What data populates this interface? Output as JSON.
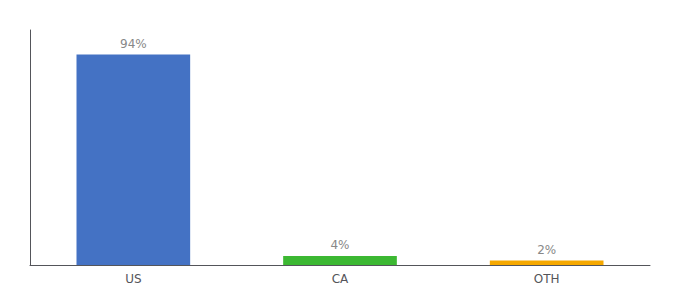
{
  "chart_data": {
    "type": "bar",
    "categories": [
      "US",
      "CA",
      "OTH"
    ],
    "values": [
      94,
      4,
      2
    ],
    "value_labels": [
      "94%",
      "4%",
      "2%"
    ],
    "colors": [
      "#4472c4",
      "#3cb832",
      "#f5a800"
    ],
    "ylim": [
      0,
      105
    ],
    "data_labels": true,
    "tick_labels": "x",
    "grid": false
  }
}
